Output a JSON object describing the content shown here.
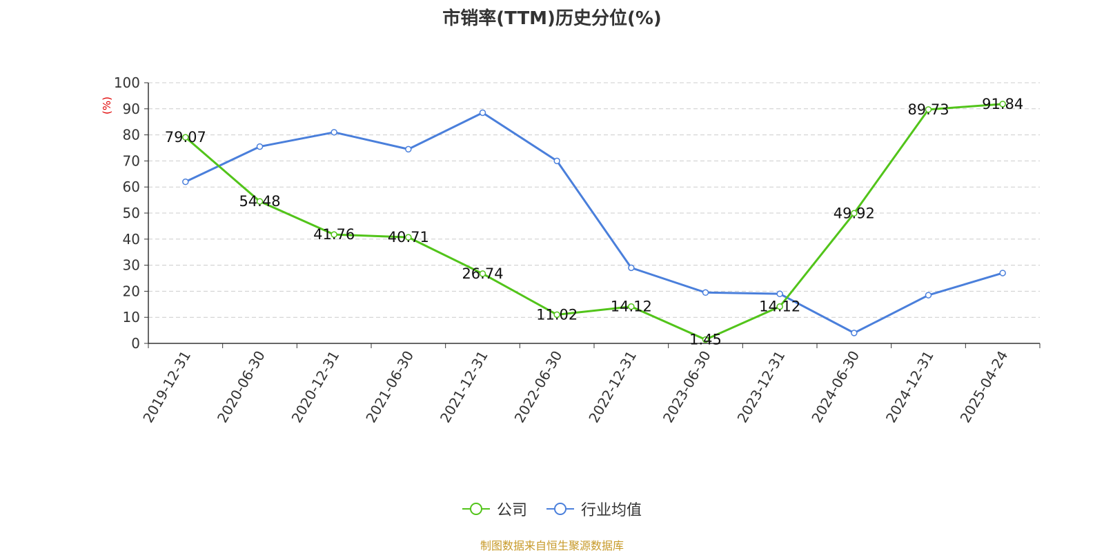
{
  "chart_data": {
    "type": "line",
    "title": "市销率(TTM)历史分位(%)",
    "ylabel": "(%)",
    "xlabel": "",
    "ylim": [
      0,
      100
    ],
    "yticks": [
      0,
      10,
      20,
      30,
      40,
      50,
      60,
      70,
      80,
      90,
      100
    ],
    "categories": [
      "2019-12-31",
      "2020-06-30",
      "2020-12-31",
      "2021-06-30",
      "2021-12-31",
      "2022-06-30",
      "2022-12-31",
      "2023-06-30",
      "2023-12-31",
      "2024-06-30",
      "2024-12-31",
      "2025-04-24"
    ],
    "series": [
      {
        "name": "公司",
        "color": "#52c41a",
        "labeled": true,
        "values": [
          79.07,
          54.48,
          41.76,
          40.71,
          26.74,
          11.02,
          14.12,
          1.45,
          14.12,
          49.92,
          89.73,
          91.84
        ],
        "labels": [
          "79.07",
          "54.48",
          "41.76",
          "40.71",
          "26.74",
          "11.02",
          "14.12",
          "1.45",
          "14.12",
          "49.92",
          "89.73",
          "91.84"
        ]
      },
      {
        "name": "行业均值",
        "color": "#4a7fdb",
        "labeled": false,
        "values": [
          62,
          75.5,
          81,
          74.5,
          88.5,
          70,
          29,
          19.5,
          19,
          4,
          18.5,
          27
        ]
      }
    ],
    "grid": true,
    "legend_position": "bottom-center"
  },
  "footer": {
    "source": "制图数据来自恒生聚源数据库"
  }
}
